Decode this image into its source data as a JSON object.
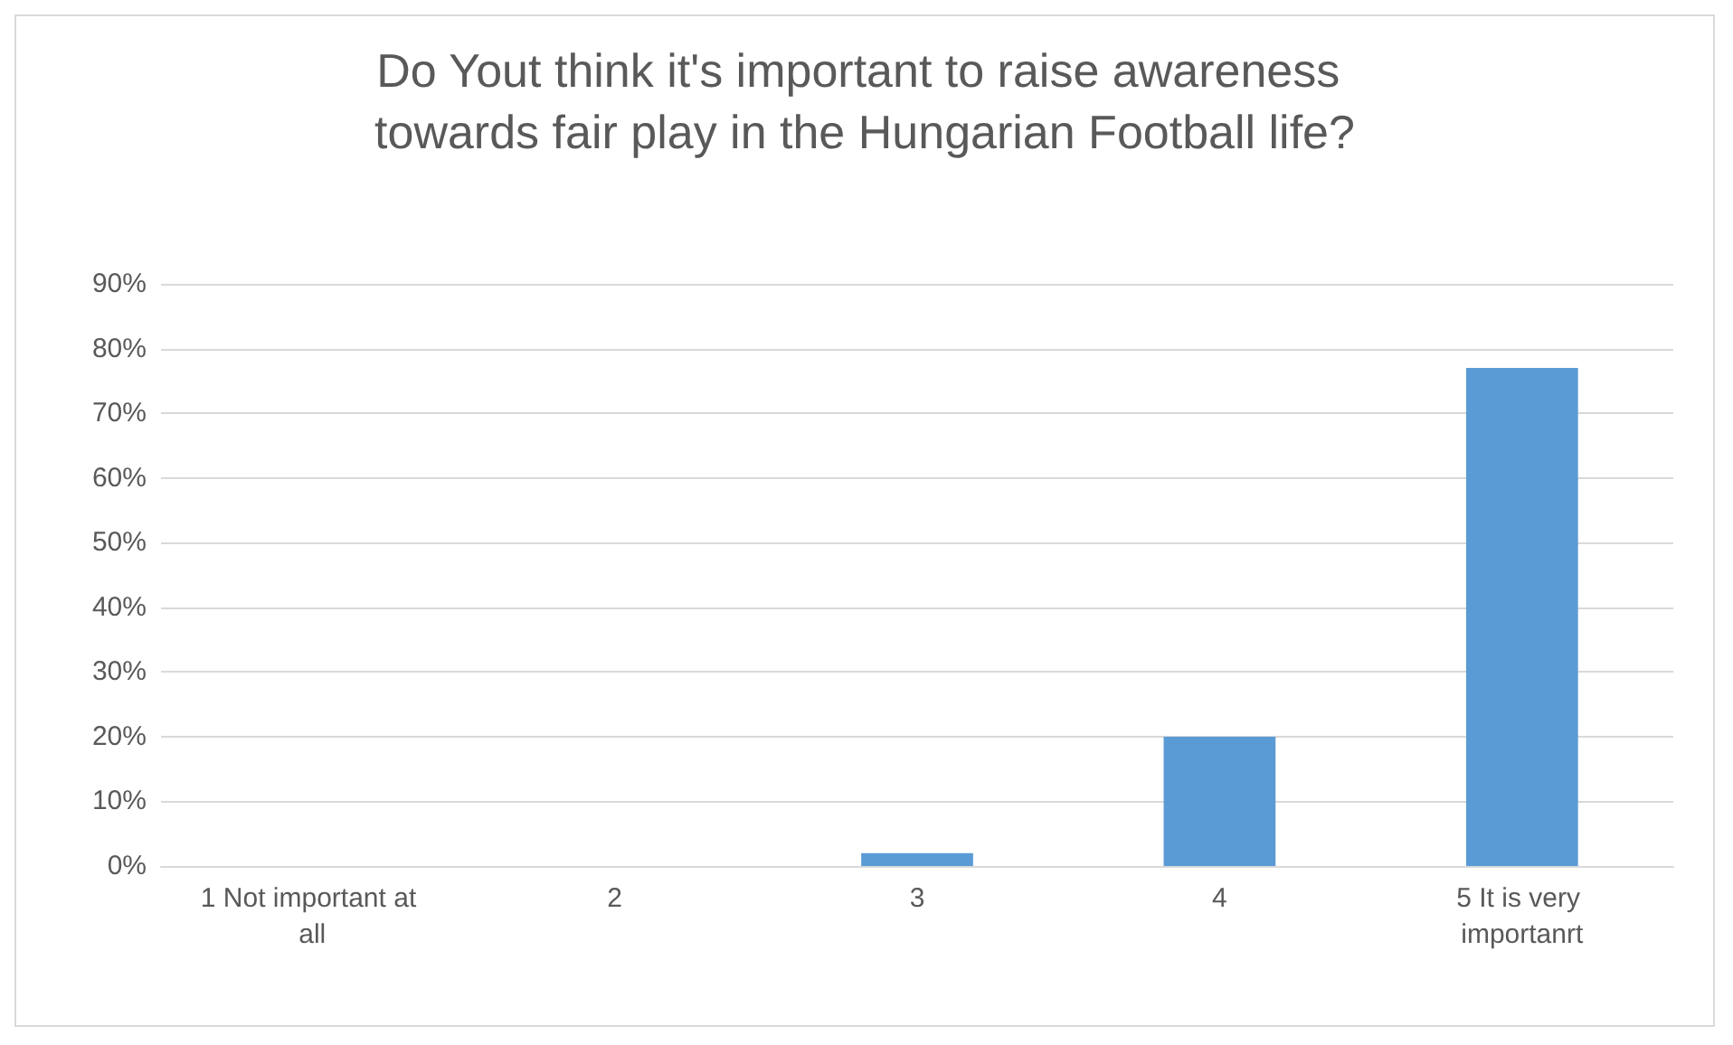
{
  "chart_data": {
    "type": "bar",
    "title": "Do Yout think it's important to raise awareness towards fair play in the Hungarian Football life?",
    "categories": [
      "1 Not important at all",
      "2",
      "3",
      "4",
      "5 It is very importanrt"
    ],
    "values": [
      0,
      0,
      2,
      20,
      77
    ],
    "color": "#5b9bd5",
    "ylim": [
      0,
      90
    ],
    "yticks": [
      {
        "value": 0,
        "label": "0%"
      },
      {
        "value": 10,
        "label": "10%"
      },
      {
        "value": 20,
        "label": "20%"
      },
      {
        "value": 30,
        "label": "30%"
      },
      {
        "value": 40,
        "label": "40%"
      },
      {
        "value": 50,
        "label": "50%"
      },
      {
        "value": 60,
        "label": "60%"
      },
      {
        "value": 70,
        "label": "70%"
      },
      {
        "value": 80,
        "label": "80%"
      },
      {
        "value": 90,
        "label": "90%"
      }
    ],
    "grid": "y"
  }
}
